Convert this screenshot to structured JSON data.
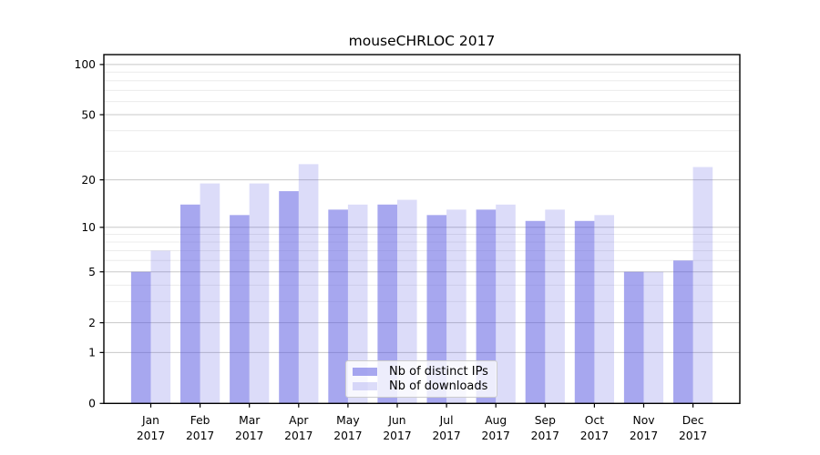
{
  "title": "mouseCHRLOC 2017",
  "chart_data": {
    "type": "bar",
    "title": "mouseCHRLOC 2017",
    "categories": [
      "Jan 2017",
      "Feb 2017",
      "Mar 2017",
      "Apr 2017",
      "May 2017",
      "Jun 2017",
      "Jul 2017",
      "Aug 2017",
      "Sep 2017",
      "Oct 2017",
      "Nov 2017",
      "Dec 2017"
    ],
    "series": [
      {
        "name": "Nb of distinct IPs",
        "values": [
          5,
          14,
          12,
          17,
          13,
          14,
          12,
          13,
          11,
          11,
          5,
          6
        ],
        "color": "rgba(80,80,224,0.5)"
      },
      {
        "name": "Nb of downloads",
        "values": [
          7,
          19,
          19,
          25,
          14,
          15,
          13,
          14,
          13,
          12,
          5,
          24
        ],
        "color": "rgba(80,80,224,0.2)"
      }
    ],
    "xlabel": "",
    "ylabel": "",
    "yscale": "log1p",
    "ylim": [
      0,
      115
    ],
    "yticks": [
      0,
      1,
      2,
      5,
      10,
      20,
      50,
      100
    ],
    "y_minor_ticks": [
      3,
      4,
      6,
      7,
      8,
      9,
      30,
      40,
      60,
      70,
      80,
      90
    ],
    "grid": true,
    "legend_position": "lower center",
    "colors": {
      "background": "#ffffff",
      "axis": "#000000",
      "grid_major": "#c8c8c8",
      "grid_minor": "#ececec",
      "tick_label": "#000000"
    }
  }
}
